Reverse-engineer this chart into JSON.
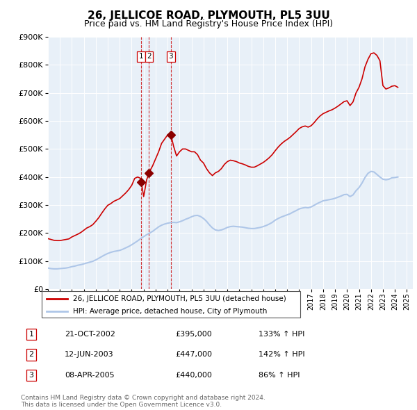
{
  "title": "26, JELLICOE ROAD, PLYMOUTH, PL5 3UU",
  "subtitle": "Price paid vs. HM Land Registry's House Price Index (HPI)",
  "ylabel_ticks": [
    "£0",
    "£100K",
    "£200K",
    "£300K",
    "£400K",
    "£500K",
    "£600K",
    "£700K",
    "£800K",
    "£900K"
  ],
  "ylim": [
    0,
    900000
  ],
  "xlim_start": 1995.0,
  "xlim_end": 2025.5,
  "hpi_color": "#aec6e8",
  "price_color": "#cc0000",
  "sale_marker_color": "#8b0000",
  "dashed_color": "#cc0000",
  "legend_label_red": "26, JELLICOE ROAD, PLYMOUTH, PL5 3UU (detached house)",
  "legend_label_blue": "HPI: Average price, detached house, City of Plymouth",
  "transactions": [
    {
      "label": "1",
      "date": "21-OCT-2002",
      "price": 395000,
      "hpi_pct": "133%",
      "x": 2002.8
    },
    {
      "label": "2",
      "date": "12-JUN-2003",
      "price": 447000,
      "hpi_pct": "142%",
      "x": 2003.45
    },
    {
      "label": "3",
      "date": "08-APR-2005",
      "price": 440000,
      "hpi_pct": "86%",
      "x": 2005.27
    }
  ],
  "footnote": "Contains HM Land Registry data © Crown copyright and database right 2024.\nThis data is licensed under the Open Government Licence v3.0.",
  "hpi_data_x": [
    1995.0,
    1995.25,
    1995.5,
    1995.75,
    1996.0,
    1996.25,
    1996.5,
    1996.75,
    1997.0,
    1997.25,
    1997.5,
    1997.75,
    1998.0,
    1998.25,
    1998.5,
    1998.75,
    1999.0,
    1999.25,
    1999.5,
    1999.75,
    2000.0,
    2000.25,
    2000.5,
    2000.75,
    2001.0,
    2001.25,
    2001.5,
    2001.75,
    2002.0,
    2002.25,
    2002.5,
    2002.75,
    2003.0,
    2003.25,
    2003.5,
    2003.75,
    2004.0,
    2004.25,
    2004.5,
    2004.75,
    2005.0,
    2005.25,
    2005.5,
    2005.75,
    2006.0,
    2006.25,
    2006.5,
    2006.75,
    2007.0,
    2007.25,
    2007.5,
    2007.75,
    2008.0,
    2008.25,
    2008.5,
    2008.75,
    2009.0,
    2009.25,
    2009.5,
    2009.75,
    2010.0,
    2010.25,
    2010.5,
    2010.75,
    2011.0,
    2011.25,
    2011.5,
    2011.75,
    2012.0,
    2012.25,
    2012.5,
    2012.75,
    2013.0,
    2013.25,
    2013.5,
    2013.75,
    2014.0,
    2014.25,
    2014.5,
    2014.75,
    2015.0,
    2015.25,
    2015.5,
    2015.75,
    2016.0,
    2016.25,
    2016.5,
    2016.75,
    2017.0,
    2017.25,
    2017.5,
    2017.75,
    2018.0,
    2018.25,
    2018.5,
    2018.75,
    2019.0,
    2019.25,
    2019.5,
    2019.75,
    2020.0,
    2020.25,
    2020.5,
    2020.75,
    2021.0,
    2021.25,
    2021.5,
    2021.75,
    2022.0,
    2022.25,
    2022.5,
    2022.75,
    2023.0,
    2023.25,
    2023.5,
    2023.75,
    2024.0,
    2024.25
  ],
  "hpi_data_y": [
    75000,
    73000,
    72000,
    72000,
    73000,
    74000,
    75000,
    77000,
    80000,
    82000,
    85000,
    87000,
    90000,
    93000,
    96000,
    99000,
    104000,
    110000,
    116000,
    122000,
    127000,
    131000,
    134000,
    136000,
    138000,
    142000,
    147000,
    152000,
    158000,
    165000,
    172000,
    180000,
    187000,
    194000,
    200000,
    206000,
    214000,
    222000,
    228000,
    232000,
    235000,
    237000,
    238000,
    237000,
    240000,
    244000,
    249000,
    253000,
    258000,
    262000,
    263000,
    259000,
    252000,
    242000,
    229000,
    218000,
    211000,
    209000,
    211000,
    215000,
    220000,
    223000,
    224000,
    223000,
    222000,
    221000,
    219000,
    217000,
    216000,
    216000,
    218000,
    220000,
    223000,
    227000,
    232000,
    238000,
    246000,
    252000,
    257000,
    261000,
    265000,
    269000,
    275000,
    280000,
    286000,
    289000,
    291000,
    290000,
    293000,
    299000,
    305000,
    310000,
    315000,
    317000,
    319000,
    321000,
    324000,
    328000,
    332000,
    337000,
    338000,
    330000,
    336000,
    351000,
    362000,
    378000,
    398000,
    413000,
    420000,
    418000,
    409000,
    400000,
    392000,
    390000,
    392000,
    397000,
    398000,
    400000
  ],
  "red_data_x": [
    1995.0,
    1995.25,
    1995.5,
    1995.75,
    1996.0,
    1996.25,
    1996.5,
    1996.75,
    1997.0,
    1997.25,
    1997.5,
    1997.75,
    1998.0,
    1998.25,
    1998.5,
    1998.75,
    1999.0,
    1999.25,
    1999.5,
    1999.75,
    2000.0,
    2000.25,
    2000.5,
    2000.75,
    2001.0,
    2001.25,
    2001.5,
    2001.75,
    2002.0,
    2002.25,
    2002.5,
    2002.75,
    2003.0,
    2003.25,
    2003.5,
    2003.75,
    2004.0,
    2004.25,
    2004.5,
    2004.75,
    2005.0,
    2005.25,
    2005.5,
    2005.75,
    2006.0,
    2006.25,
    2006.5,
    2006.75,
    2007.0,
    2007.25,
    2007.5,
    2007.75,
    2008.0,
    2008.25,
    2008.5,
    2008.75,
    2009.0,
    2009.25,
    2009.5,
    2009.75,
    2010.0,
    2010.25,
    2010.5,
    2010.75,
    2011.0,
    2011.25,
    2011.5,
    2011.75,
    2012.0,
    2012.25,
    2012.5,
    2012.75,
    2013.0,
    2013.25,
    2013.5,
    2013.75,
    2014.0,
    2014.25,
    2014.5,
    2014.75,
    2015.0,
    2015.25,
    2015.5,
    2015.75,
    2016.0,
    2016.25,
    2016.5,
    2016.75,
    2017.0,
    2017.25,
    2017.5,
    2017.75,
    2018.0,
    2018.25,
    2018.5,
    2018.75,
    2019.0,
    2019.25,
    2019.5,
    2019.75,
    2020.0,
    2020.25,
    2020.5,
    2020.75,
    2021.0,
    2021.25,
    2021.5,
    2021.75,
    2022.0,
    2022.25,
    2022.5,
    2022.75,
    2023.0,
    2023.25,
    2023.5,
    2023.75,
    2024.0,
    2024.25
  ],
  "red_data_y": [
    180000,
    177000,
    174000,
    173000,
    173000,
    175000,
    177000,
    179000,
    186000,
    191000,
    196000,
    202000,
    210000,
    218000,
    223000,
    230000,
    242000,
    255000,
    271000,
    286000,
    299000,
    305000,
    313000,
    318000,
    323000,
    333000,
    343000,
    355000,
    370000,
    395000,
    400000,
    395000,
    330000,
    390000,
    420000,
    440000,
    465000,
    490000,
    520000,
    535000,
    550000,
    555000,
    510000,
    475000,
    490000,
    500000,
    500000,
    495000,
    490000,
    490000,
    480000,
    460000,
    450000,
    430000,
    415000,
    405000,
    415000,
    420000,
    430000,
    445000,
    455000,
    460000,
    458000,
    455000,
    450000,
    447000,
    443000,
    438000,
    435000,
    435000,
    440000,
    446000,
    452000,
    460000,
    469000,
    480000,
    494000,
    507000,
    518000,
    527000,
    534000,
    542000,
    552000,
    562000,
    573000,
    579000,
    582000,
    578000,
    583000,
    594000,
    607000,
    618000,
    626000,
    631000,
    636000,
    640000,
    646000,
    653000,
    661000,
    669000,
    672000,
    655000,
    668000,
    700000,
    720000,
    750000,
    793000,
    820000,
    840000,
    843000,
    834000,
    815000,
    726000,
    714000,
    718000,
    724000,
    726000,
    720000
  ]
}
